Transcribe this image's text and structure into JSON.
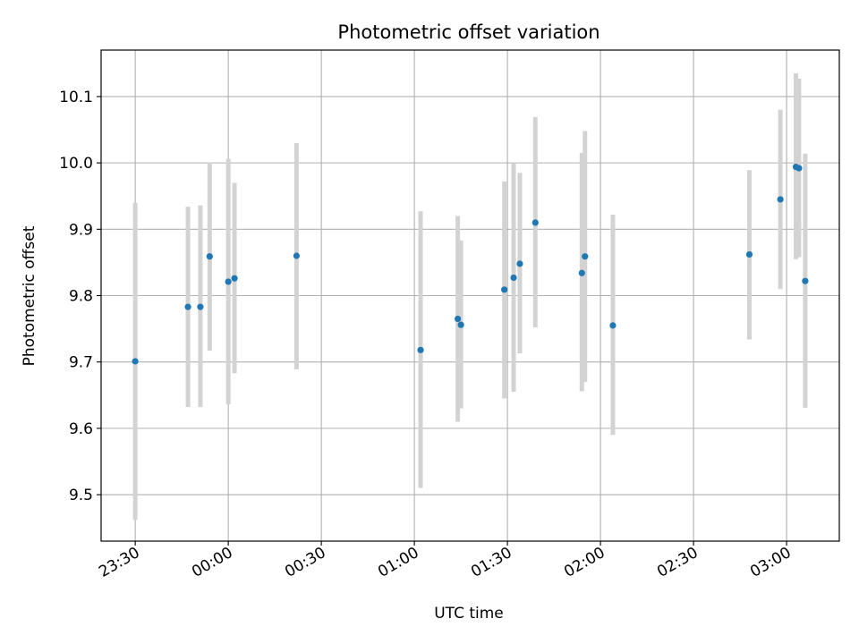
{
  "chart_data": {
    "type": "scatter",
    "title": "Photometric offset variation",
    "xlabel": "UTC time",
    "ylabel": "Photometric offset",
    "grid": true,
    "x_ticks": [
      "23:30",
      "00:00",
      "00:30",
      "01:00",
      "01:30",
      "02:00",
      "02:30",
      "03:00"
    ],
    "y_ticks": [
      "9.5",
      "9.6",
      "9.7",
      "9.8",
      "9.9",
      "10.0",
      "10.1"
    ],
    "ylim": [
      9.43,
      10.17
    ],
    "xlim": [
      "23:19",
      "03:17"
    ],
    "colors": {
      "point": "#1f77b4",
      "errorbar": "#d3d3d3",
      "grid": "#b0b0b0"
    },
    "series": [
      {
        "points": [
          {
            "x": "23:30",
            "y": 9.701,
            "low": 9.462,
            "high": 9.94
          },
          {
            "x": "23:47",
            "y": 9.783,
            "low": 9.632,
            "high": 9.934
          },
          {
            "x": "23:51",
            "y": 9.783,
            "low": 9.632,
            "high": 9.936
          },
          {
            "x": "23:54",
            "y": 9.859,
            "low": 9.717,
            "high": 10.001
          },
          {
            "x": "00:00",
            "y": 9.821,
            "low": 9.636,
            "high": 10.006
          },
          {
            "x": "00:02",
            "y": 9.826,
            "low": 9.683,
            "high": 9.97
          },
          {
            "x": "00:22",
            "y": 9.86,
            "low": 9.689,
            "high": 10.03
          },
          {
            "x": "01:02",
            "y": 9.718,
            "low": 9.51,
            "high": 9.927
          },
          {
            "x": "01:14",
            "y": 9.765,
            "low": 9.61,
            "high": 9.92
          },
          {
            "x": "01:15",
            "y": 9.756,
            "low": 9.63,
            "high": 9.883
          },
          {
            "x": "01:29",
            "y": 9.809,
            "low": 9.645,
            "high": 9.972
          },
          {
            "x": "01:32",
            "y": 9.827,
            "low": 9.655,
            "high": 9.999
          },
          {
            "x": "01:34",
            "y": 9.848,
            "low": 9.713,
            "high": 9.985
          },
          {
            "x": "01:39",
            "y": 9.91,
            "low": 9.752,
            "high": 10.069
          },
          {
            "x": "01:54",
            "y": 9.834,
            "low": 9.656,
            "high": 10.015
          },
          {
            "x": "01:55",
            "y": 9.859,
            "low": 9.67,
            "high": 10.048
          },
          {
            "x": "02:04",
            "y": 9.755,
            "low": 9.59,
            "high": 9.922
          },
          {
            "x": "02:48",
            "y": 9.862,
            "low": 9.734,
            "high": 9.989
          },
          {
            "x": "02:58",
            "y": 9.945,
            "low": 9.81,
            "high": 10.08
          },
          {
            "x": "03:03",
            "y": 9.994,
            "low": 9.855,
            "high": 10.135
          },
          {
            "x": "03:04",
            "y": 9.992,
            "low": 9.858,
            "high": 10.127
          },
          {
            "x": "03:06",
            "y": 9.822,
            "low": 9.631,
            "high": 10.014
          }
        ]
      }
    ]
  }
}
